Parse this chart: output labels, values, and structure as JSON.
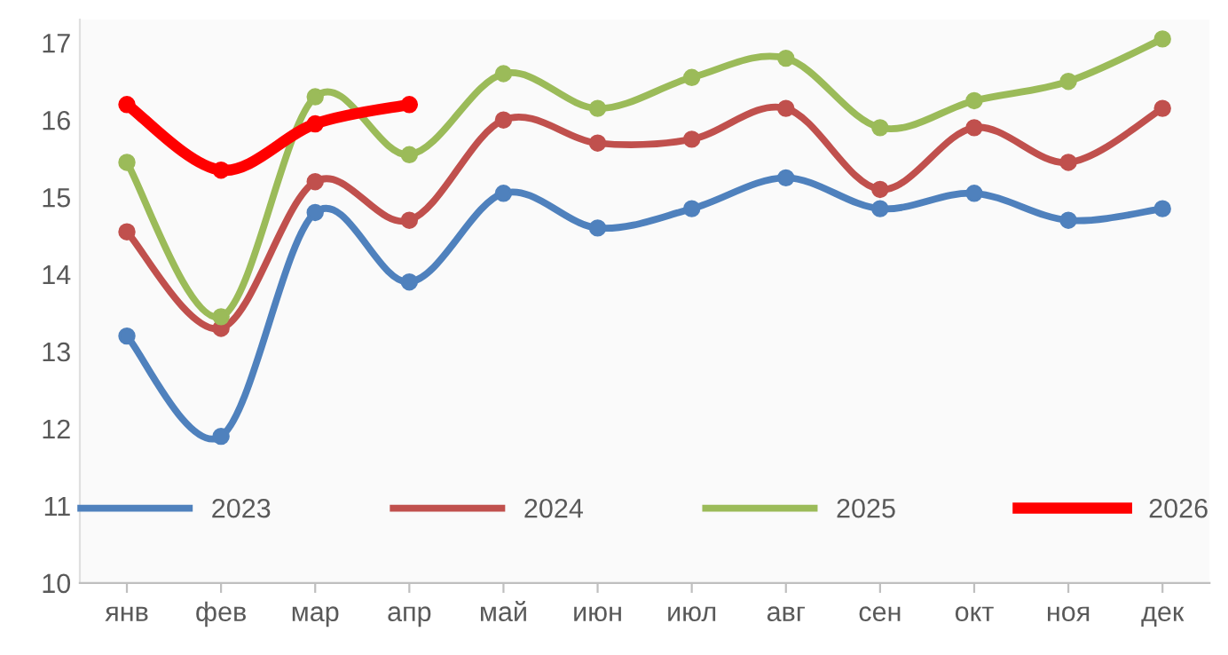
{
  "chart_data": {
    "type": "line",
    "categories": [
      "янв",
      "фев",
      "мар",
      "апр",
      "май",
      "июн",
      "июл",
      "авг",
      "сен",
      "окт",
      "ноя",
      "дек"
    ],
    "series": [
      {
        "name": "2023",
        "color": "#4f81bd",
        "values": [
          13.2,
          11.9,
          14.8,
          13.9,
          15.05,
          14.6,
          14.85,
          15.25,
          14.85,
          15.05,
          14.7,
          14.85
        ]
      },
      {
        "name": "2024",
        "color": "#c0504d",
        "values": [
          14.55,
          13.3,
          15.2,
          14.7,
          16.0,
          15.7,
          15.75,
          16.15,
          15.1,
          15.9,
          15.45,
          16.15
        ]
      },
      {
        "name": "2025",
        "color": "#9bbb59",
        "values": [
          15.45,
          13.45,
          16.3,
          15.55,
          16.6,
          16.15,
          16.55,
          16.8,
          15.9,
          16.25,
          16.5,
          17.05
        ]
      },
      {
        "name": "2026",
        "color": "#ff0000",
        "values": [
          16.2,
          15.35,
          15.95,
          16.2,
          null,
          null,
          null,
          null,
          null,
          null,
          null,
          null
        ]
      }
    ],
    "ylim": [
      10,
      17.3
    ],
    "yticks": [
      10,
      11,
      12,
      13,
      14,
      15,
      16,
      17
    ],
    "grid": false,
    "legend": "bottom",
    "marker": "circle",
    "line_style": "solid"
  }
}
